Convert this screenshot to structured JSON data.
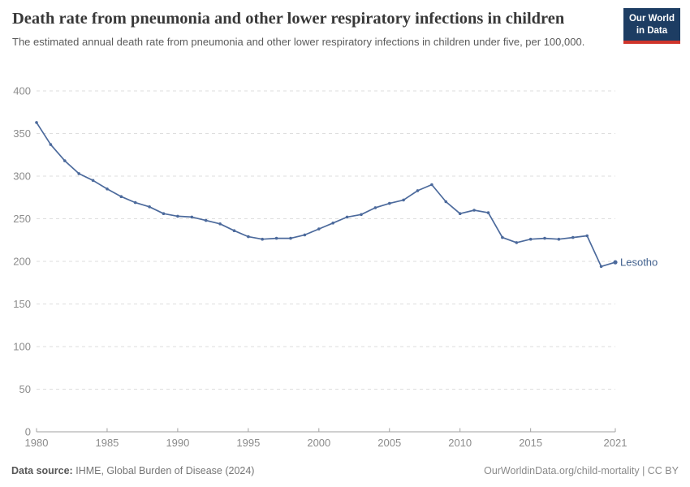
{
  "logo": {
    "line1": "Our World",
    "line2": "in Data"
  },
  "chart_data": {
    "type": "line",
    "title": "Death rate from pneumonia and other lower respiratory infections in children",
    "subtitle": "The estimated annual death rate from pneumonia and other lower respiratory infections in children under five, per 100,000.",
    "xlabel": "",
    "ylabel": "",
    "xlim": [
      1980,
      2021
    ],
    "ylim": [
      0,
      400
    ],
    "x_ticks": [
      1980,
      1985,
      1990,
      1995,
      2000,
      2005,
      2010,
      2015,
      2021
    ],
    "y_ticks": [
      0,
      50,
      100,
      150,
      200,
      250,
      300,
      350,
      400
    ],
    "grid": "horizontal-dashed",
    "legend_position": "end-of-line-label",
    "end_label": "Lesotho",
    "series": [
      {
        "name": "Lesotho",
        "color": "#4c6a9c",
        "x": [
          1980,
          1981,
          1982,
          1983,
          1984,
          1985,
          1986,
          1987,
          1988,
          1989,
          1990,
          1991,
          1992,
          1993,
          1994,
          1995,
          1996,
          1997,
          1998,
          1999,
          2000,
          2001,
          2002,
          2003,
          2004,
          2005,
          2006,
          2007,
          2008,
          2009,
          2010,
          2011,
          2012,
          2013,
          2014,
          2015,
          2016,
          2017,
          2018,
          2019,
          2020,
          2021
        ],
        "values": [
          363,
          337,
          318,
          303,
          295,
          285,
          276,
          269,
          264,
          256,
          253,
          252,
          248,
          244,
          236,
          229,
          226,
          227,
          227,
          231,
          238,
          245,
          252,
          255,
          263,
          268,
          272,
          283,
          290,
          270,
          256,
          260,
          257,
          228,
          222,
          226,
          227,
          226,
          228,
          230,
          194,
          199
        ]
      }
    ]
  },
  "footer": {
    "source_label": "Data source:",
    "source_text": "IHME, Global Burden of Disease (2024)",
    "attribution": "OurWorldinData.org/child-mortality | CC BY"
  },
  "colors": {
    "line": "#4c6a9c",
    "end_label_text": "#41618e",
    "grid": "#dedede",
    "axis": "#a1a1a1",
    "tick_text": "#8b8b8b",
    "logo_bg": "#1d3d63",
    "logo_stripe": "#cf342b",
    "title": "#383838",
    "subtitle": "#5b5b5b"
  }
}
